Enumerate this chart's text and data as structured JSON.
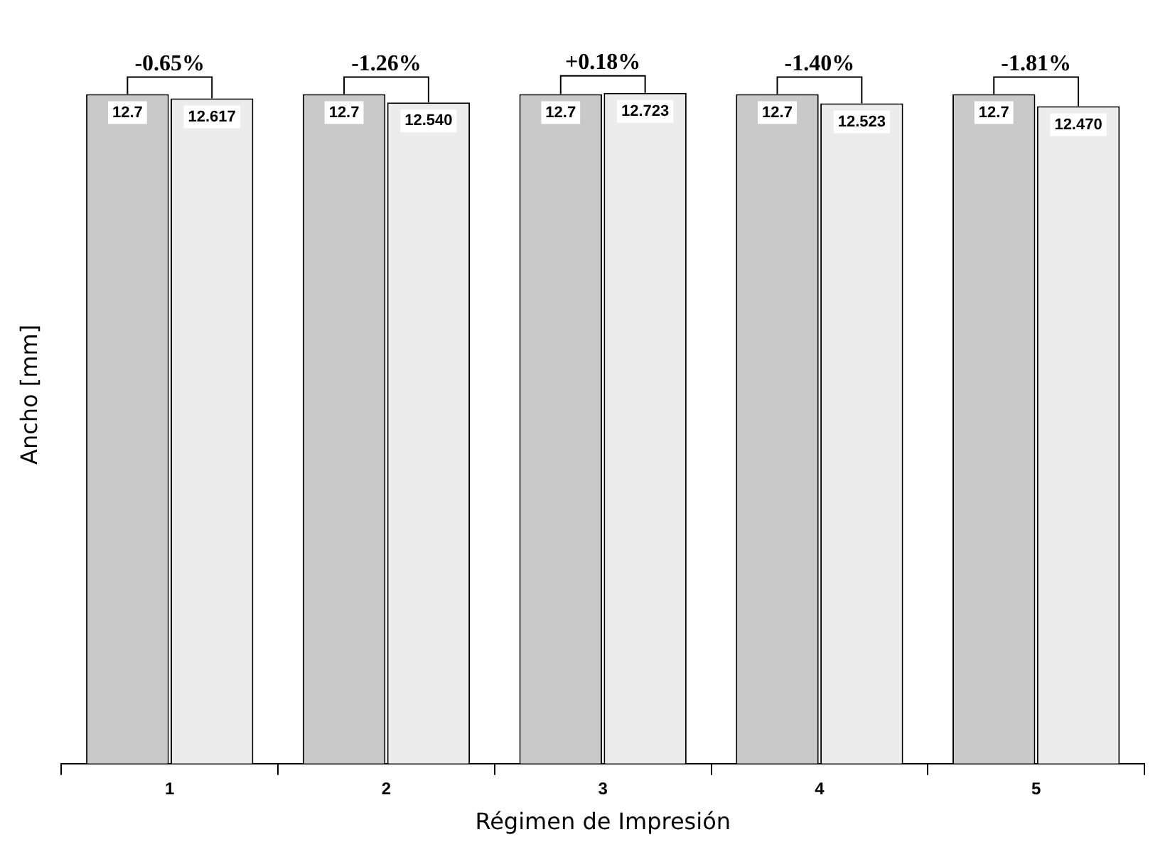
{
  "chart_data": {
    "type": "bar",
    "xlabel": "Régimen de Impresión",
    "ylabel": "Ancho [mm]",
    "categories": [
      "1",
      "2",
      "3",
      "4",
      "5"
    ],
    "series": [
      {
        "color": "#c9c9c9",
        "values": [
          12.7,
          12.7,
          12.7,
          12.7,
          12.7
        ],
        "value_labels": [
          "12.7",
          "12.7",
          "12.7",
          "12.7",
          "12.7"
        ]
      },
      {
        "color": "#ececec",
        "values": [
          12.617,
          12.54,
          12.723,
          12.523,
          12.47
        ],
        "value_labels": [
          "12.617",
          "12.540",
          "12.723",
          "12.523",
          "12.470"
        ]
      }
    ],
    "annotations": [
      "-0.65%",
      "-1.26%",
      "+0.18%",
      "-1.40%",
      "-1.81%"
    ],
    "tick_labels": "x",
    "legend": false,
    "grid": false
  }
}
